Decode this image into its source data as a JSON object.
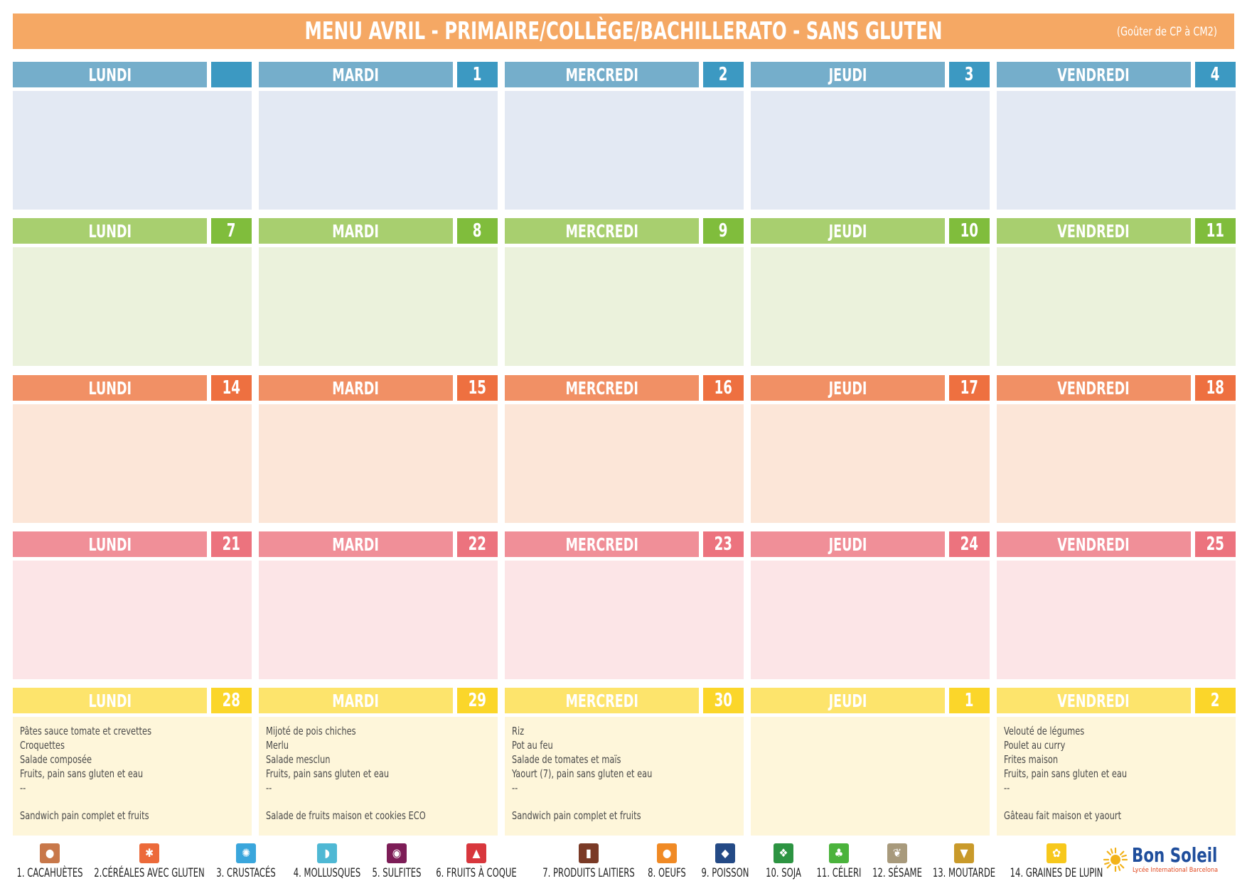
{
  "colors": {
    "title": "#f5a864",
    "weeks": [
      {
        "head": "#75aecb",
        "num": "#3c99c2",
        "body": "#e3e9f3"
      },
      {
        "head": "#a8cf6f",
        "num": "#80bd3c",
        "body": "#ebf2dc"
      },
      {
        "head": "#f19065",
        "num": "#ee7040",
        "body": "#fce6d8"
      },
      {
        "head": "#f08f98",
        "num": "#ec737e",
        "body": "#fce5e7"
      },
      {
        "head": "#fde46c",
        "num": "#fbd62a",
        "body": "#fef6da"
      }
    ]
  },
  "header": {
    "title": "MENU AVRIL - PRIMAIRE/COLLÈGE/BACHILLERATO - SANS GLUTEN",
    "subtitle": "(Goûter de CP à CM2)"
  },
  "weeks": [
    {
      "days": [
        {
          "name": "LUNDI",
          "num": "",
          "meals": [],
          "snack": ""
        },
        {
          "name": "MARDI",
          "num": "1",
          "meals": [],
          "snack": ""
        },
        {
          "name": "MERCREDI",
          "num": "2",
          "meals": [],
          "snack": ""
        },
        {
          "name": "JEUDI",
          "num": "3",
          "meals": [],
          "snack": ""
        },
        {
          "name": "VENDREDI",
          "num": "4",
          "meals": [],
          "snack": ""
        }
      ]
    },
    {
      "days": [
        {
          "name": "LUNDI",
          "num": "7",
          "meals": [],
          "snack": ""
        },
        {
          "name": "MARDI",
          "num": "8",
          "meals": [],
          "snack": ""
        },
        {
          "name": "MERCREDI",
          "num": "9",
          "meals": [],
          "snack": ""
        },
        {
          "name": "JEUDI",
          "num": "10",
          "meals": [],
          "snack": ""
        },
        {
          "name": "VENDREDI",
          "num": "11",
          "meals": [],
          "snack": ""
        }
      ]
    },
    {
      "days": [
        {
          "name": "LUNDI",
          "num": "14",
          "meals": [],
          "snack": ""
        },
        {
          "name": "MARDI",
          "num": "15",
          "meals": [],
          "snack": ""
        },
        {
          "name": "MERCREDI",
          "num": "16",
          "meals": [],
          "snack": ""
        },
        {
          "name": "JEUDI",
          "num": "17",
          "meals": [],
          "snack": ""
        },
        {
          "name": "VENDREDI",
          "num": "18",
          "meals": [],
          "snack": ""
        }
      ]
    },
    {
      "days": [
        {
          "name": "LUNDI",
          "num": "21",
          "meals": [],
          "snack": ""
        },
        {
          "name": "MARDI",
          "num": "22",
          "meals": [],
          "snack": ""
        },
        {
          "name": "MERCREDI",
          "num": "23",
          "meals": [],
          "snack": ""
        },
        {
          "name": "JEUDI",
          "num": "24",
          "meals": [],
          "snack": ""
        },
        {
          "name": "VENDREDI",
          "num": "25",
          "meals": [],
          "snack": ""
        }
      ]
    },
    {
      "days": [
        {
          "name": "LUNDI",
          "num": "28",
          "meals": [
            "Pâtes sauce tomate et crevettes",
            "Croquettes",
            "Salade composée",
            "Fruits, pain sans gluten et eau",
            "--"
          ],
          "snack": "Sandwich pain complet et fruits"
        },
        {
          "name": "MARDI",
          "num": "29",
          "meals": [
            "Mijoté de pois chiches",
            "Merlu",
            "Salade mesclun",
            "Fruits, pain sans gluten et eau",
            "--"
          ],
          "snack": "Salade de fruits maison et cookies ECO"
        },
        {
          "name": "MERCREDI",
          "num": "30",
          "meals": [
            "Riz",
            "Pot au feu",
            "Salade de tomates et maïs",
            "Yaourt (7), pain sans gluten et eau",
            "--"
          ],
          "snack": "Sandwich pain complet et fruits"
        },
        {
          "name": "JEUDI",
          "num": "1",
          "meals": [],
          "snack": ""
        },
        {
          "name": "VENDREDI",
          "num": "2",
          "meals": [
            "Velouté de légumes",
            "Poulet au curry",
            "Frites maison",
            "Fruits, pain sans gluten et eau",
            "--"
          ],
          "snack": "Gâteau fait maison et yaourt"
        }
      ]
    }
  ],
  "allergens": [
    {
      "label": "1. CACAHUÈTES",
      "icon": "peanut-icon",
      "glyph": "●",
      "color": "#c8784a"
    },
    {
      "label": "2.CÉRÉALES AVEC GLUTEN",
      "icon": "wheat-icon",
      "glyph": "✱",
      "color": "#ec6a3a"
    },
    {
      "label": "3. CRUSTACÉS",
      "icon": "crab-icon",
      "glyph": "✺",
      "color": "#3aa6dc"
    },
    {
      "label": "4. MOLLUSQUES",
      "icon": "shell-icon",
      "glyph": "◗",
      "color": "#4fb8d4"
    },
    {
      "label": "5. SULFITES",
      "icon": "sulfite-icon",
      "glyph": "◉",
      "color": "#7d1d57"
    },
    {
      "label": "6. FRUITS À COQUE",
      "icon": "nut-icon",
      "glyph": "▲",
      "color": "#d8373d"
    },
    {
      "label": "7. PRODUITS LAITIERS",
      "icon": "milk-icon",
      "glyph": "▮",
      "color": "#7a3a26"
    },
    {
      "label": "8. OEUFS",
      "icon": "eggs-icon",
      "glyph": "●",
      "color": "#f08a25"
    },
    {
      "label": "9. POISSON",
      "icon": "fish-icon",
      "glyph": "◆",
      "color": "#244a86"
    },
    {
      "label": "10. SOJA",
      "icon": "soy-icon",
      "glyph": "❖",
      "color": "#2d9442"
    },
    {
      "label": "11. CÉLERI",
      "icon": "celery-icon",
      "glyph": "♣",
      "color": "#4bb33c"
    },
    {
      "label": "12. SÉSAME",
      "icon": "sesame-icon",
      "glyph": "❦",
      "color": "#a89a7c"
    },
    {
      "label": "13. MOUTARDE",
      "icon": "mustard-icon",
      "glyph": "▼",
      "color": "#c99a2a"
    },
    {
      "label": "14. GRAINES DE LUPIN",
      "icon": "lupin-icon",
      "glyph": "✿",
      "color": "#f7c81c"
    }
  ],
  "logo": {
    "brand": "Bon Soleil",
    "tagline": "Lycée International Barcelona",
    "icon": "sun-icon"
  }
}
